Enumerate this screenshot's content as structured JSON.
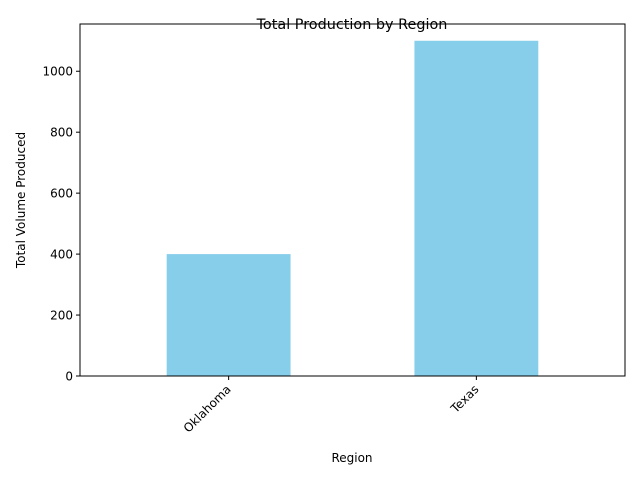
{
  "chart_data": {
    "type": "bar",
    "title": "Total Production by Region",
    "xlabel": "Region",
    "ylabel": "Total Volume Produced",
    "categories": [
      "Oklahoma",
      "Texas"
    ],
    "values": [
      400,
      1100
    ],
    "ylim": [
      0,
      1155
    ],
    "yticks": [
      0,
      200,
      400,
      600,
      800,
      1000
    ],
    "bar_color": "#87ceeb",
    "grid": false,
    "legend": "none"
  }
}
